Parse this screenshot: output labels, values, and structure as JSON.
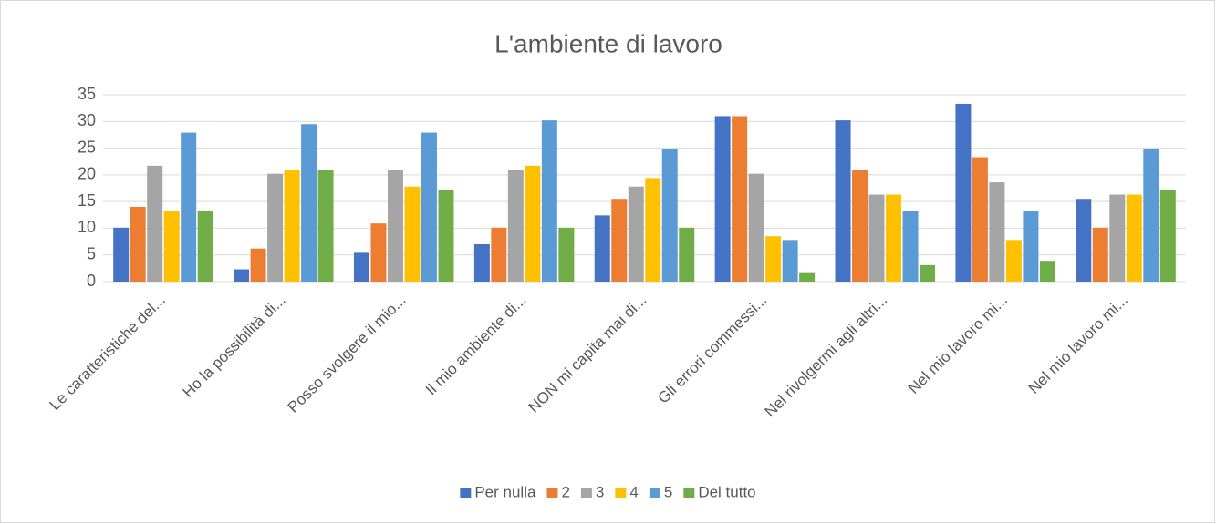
{
  "chart_data": {
    "type": "bar",
    "title": "L'ambiente di lavoro",
    "categories": [
      "Le caratteristiche del...",
      "Ho la possibilità di...",
      "Posso svolgere il mio...",
      "Il mio ambiente di...",
      "NON mi capita mai di...",
      "Gli errori commessi...",
      "Nel rivolgermi agli altri...",
      "Nel mio lavoro mi...",
      "Nel mio lavoro mi..."
    ],
    "series": [
      {
        "name": "Per nulla",
        "color": "#4472c4",
        "values": [
          10.1,
          2.3,
          5.4,
          7.0,
          12.4,
          31.0,
          30.2,
          33.3,
          15.5
        ]
      },
      {
        "name": "2",
        "color": "#ed7d31",
        "values": [
          14.0,
          6.2,
          10.9,
          10.1,
          15.5,
          31.0,
          20.9,
          23.3,
          10.1
        ]
      },
      {
        "name": "3",
        "color": "#a5a5a5",
        "values": [
          21.7,
          20.2,
          20.9,
          20.9,
          17.8,
          20.2,
          16.3,
          18.6,
          16.3
        ]
      },
      {
        "name": "4",
        "color": "#ffc000",
        "values": [
          13.2,
          20.9,
          17.8,
          21.7,
          19.4,
          8.5,
          16.3,
          7.8,
          16.3
        ]
      },
      {
        "name": "5",
        "color": "#5b9bd5",
        "values": [
          27.9,
          29.5,
          27.9,
          30.2,
          24.8,
          7.8,
          13.2,
          13.2,
          24.8
        ]
      },
      {
        "name": "Del tutto",
        "color": "#70ad47",
        "values": [
          13.2,
          20.9,
          17.1,
          10.1,
          10.1,
          1.6,
          3.1,
          3.9,
          17.1
        ]
      }
    ],
    "ylim": [
      0,
      35
    ],
    "yticks": [
      0,
      5,
      10,
      15,
      20,
      25,
      30,
      35
    ],
    "grid": true,
    "legend": "bottom"
  }
}
